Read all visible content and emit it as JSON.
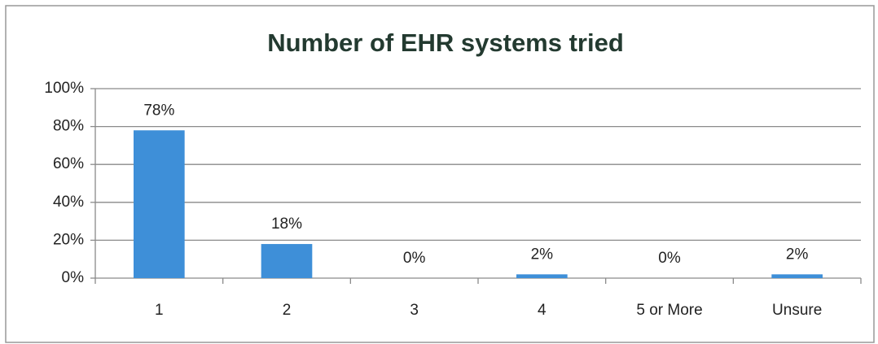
{
  "chart_data": {
    "type": "bar",
    "title": "Number of EHR systems tried",
    "categories": [
      "1",
      "2",
      "3",
      "4",
      "5 or More",
      "Unsure"
    ],
    "values": [
      78,
      18,
      0,
      2,
      0,
      2
    ],
    "value_labels": [
      "78%",
      "18%",
      "0%",
      "2%",
      "0%",
      "2%"
    ],
    "color": "#3e8fd8",
    "ylim": [
      0,
      100
    ],
    "yticks": [
      {
        "value": 0,
        "label": "0%"
      },
      {
        "value": 20,
        "label": "20%"
      },
      {
        "value": 40,
        "label": "40%"
      },
      {
        "value": 60,
        "label": "60%"
      },
      {
        "value": 80,
        "label": "80%"
      },
      {
        "value": 100,
        "label": "100%"
      }
    ],
    "grid": true
  }
}
